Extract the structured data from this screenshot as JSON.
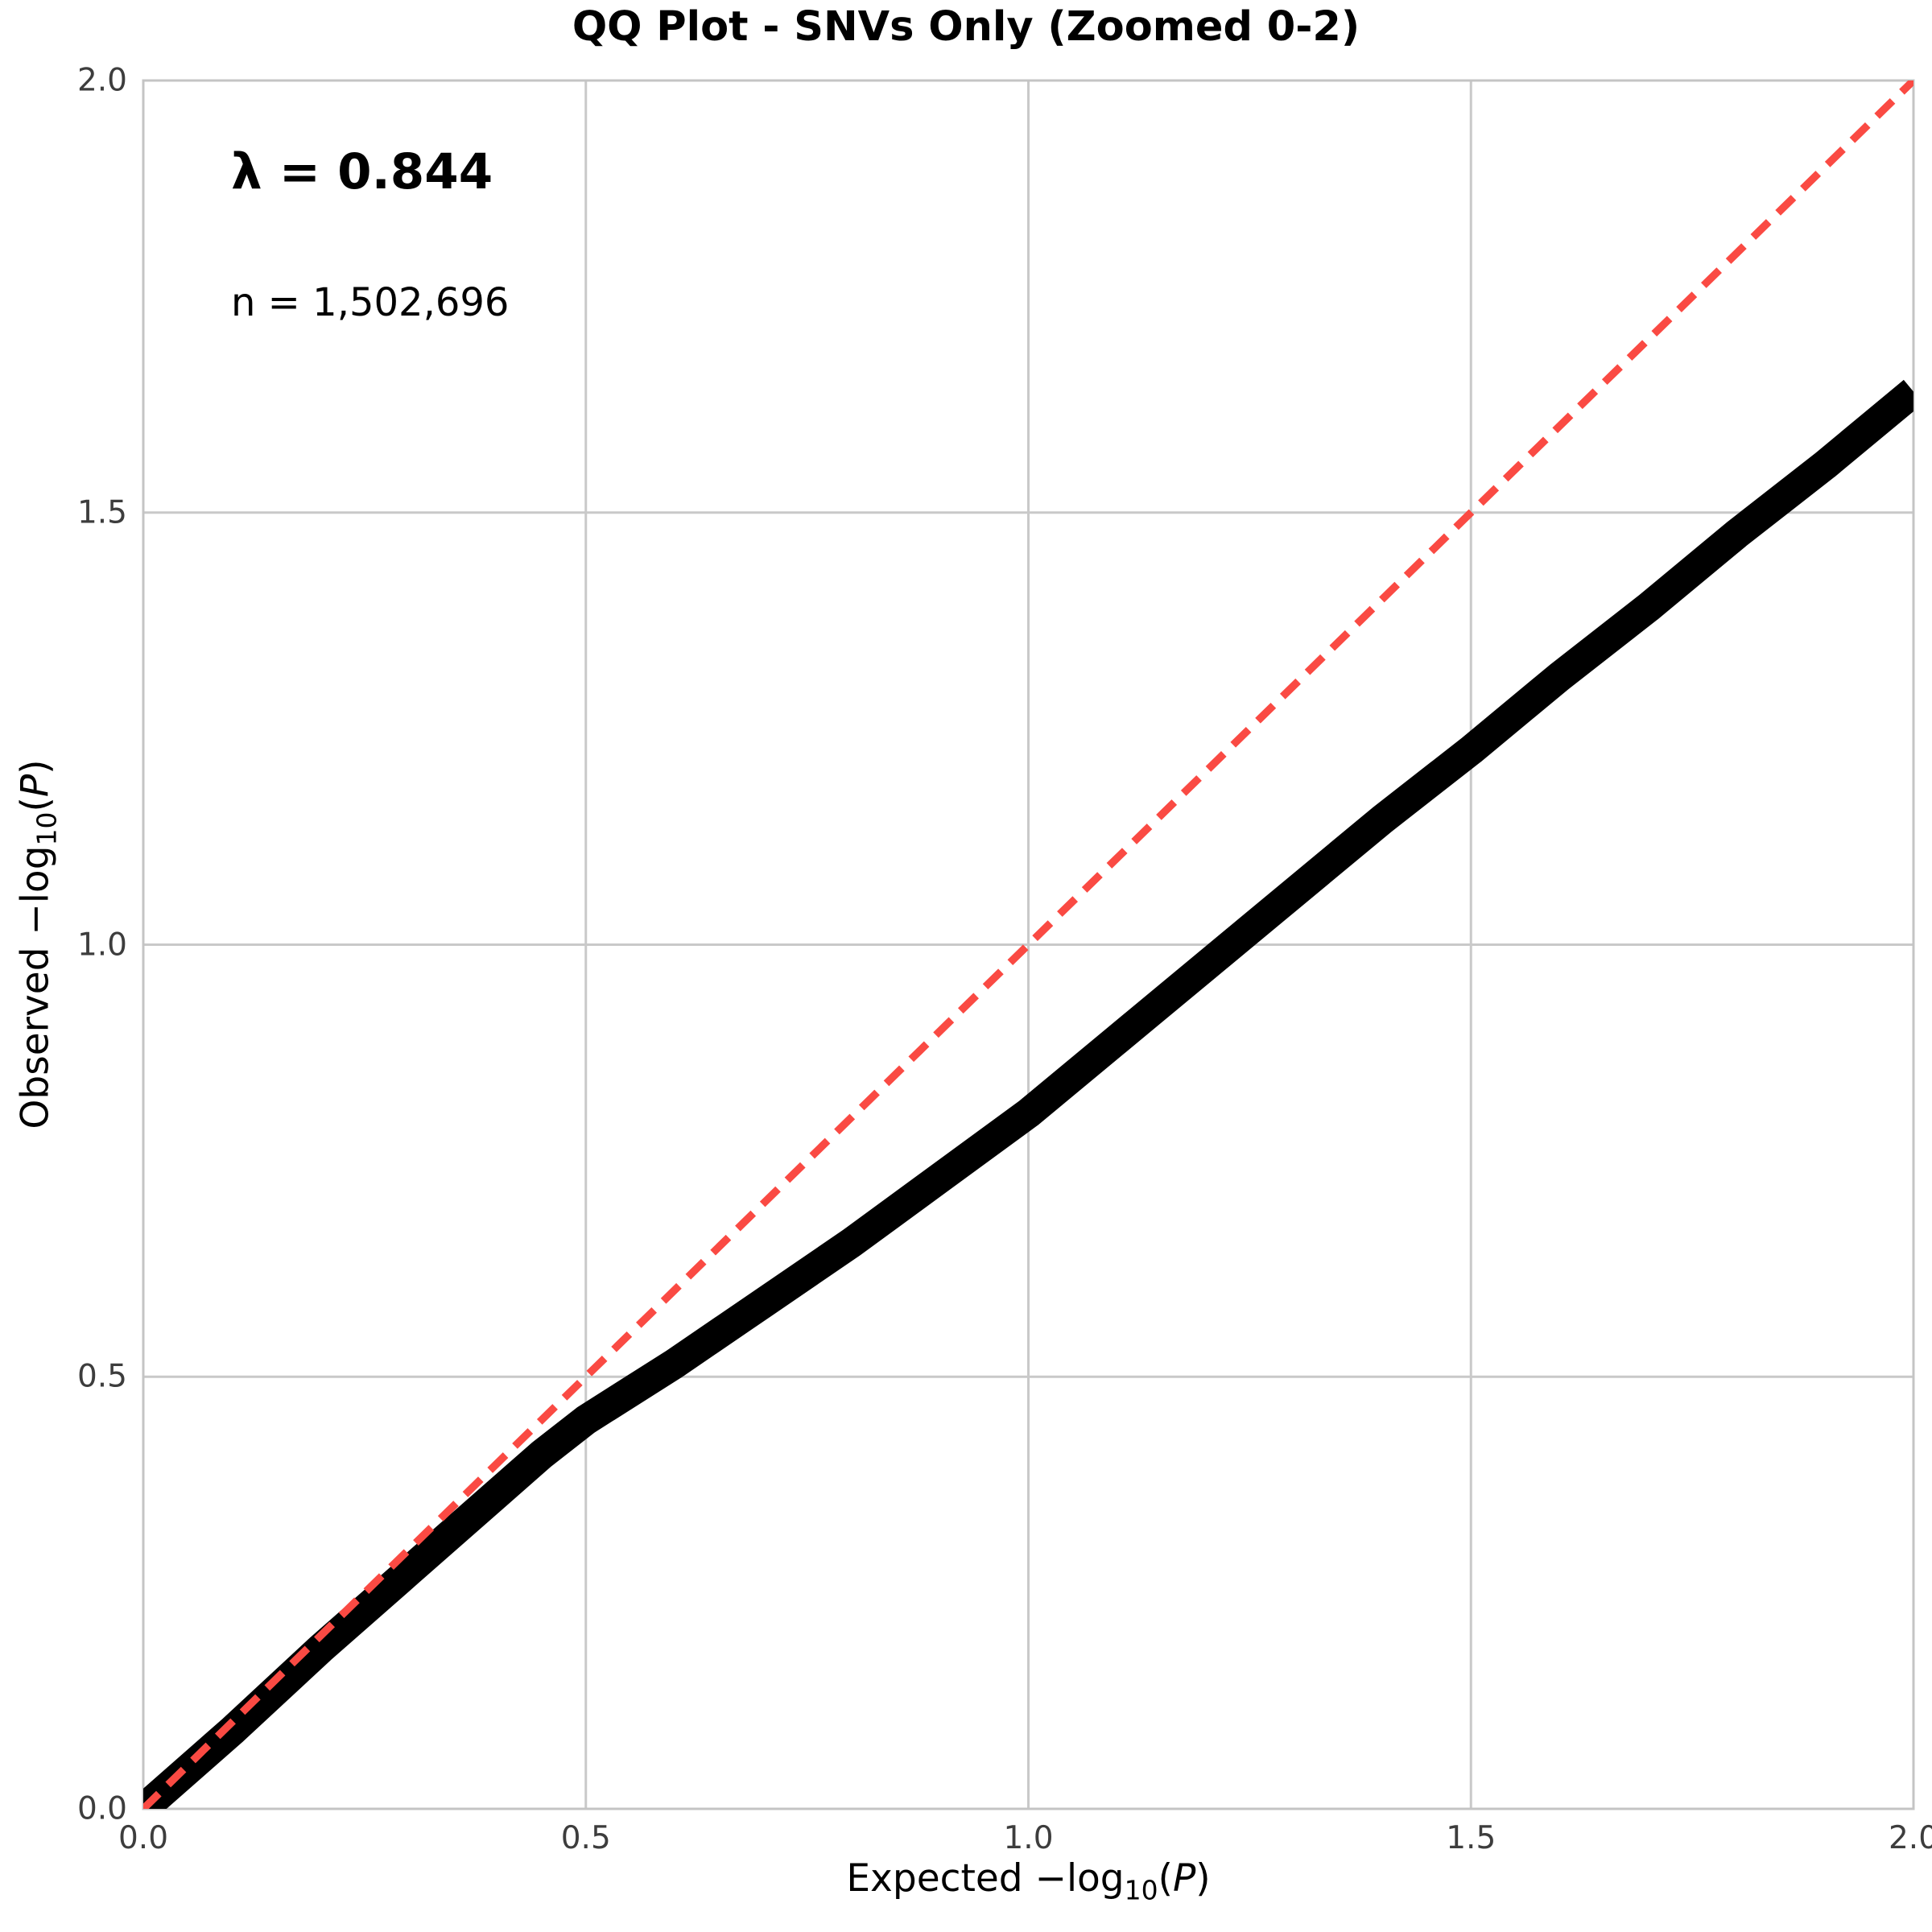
{
  "page": {
    "background": "#ffffff"
  },
  "chart_data": {
    "type": "line",
    "title": "QQ Plot - SNVs Only (Zoomed 0-2)",
    "xlabel": "Expected −log10(P)",
    "ylabel": "Observed −log10(P)",
    "xlim": [
      0,
      2
    ],
    "ylim": [
      0,
      2
    ],
    "grid": true,
    "legend": "none",
    "x_ticks": [
      "0.0",
      "0.5",
      "1.0",
      "1.5",
      "2.0"
    ],
    "y_ticks": [
      "0.0",
      "0.5",
      "1.0",
      "1.5",
      "2.0"
    ],
    "annotations": [
      {
        "name": "lambda",
        "text": "λ = 0.844"
      },
      {
        "name": "n-count",
        "text": "n = 1,502,696"
      }
    ],
    "series": [
      {
        "name": "observed-quantiles",
        "color": "#000000",
        "style": "solid",
        "x": [
          0.0,
          0.1,
          0.2,
          0.3,
          0.4,
          0.45,
          0.5,
          0.6,
          0.7,
          0.8,
          0.9,
          1.0,
          1.1,
          1.2,
          1.3,
          1.4,
          1.5,
          1.6,
          1.7,
          1.8,
          1.9,
          2.0
        ],
        "y": [
          0.0,
          0.09,
          0.185,
          0.275,
          0.365,
          0.41,
          0.45,
          0.515,
          0.585,
          0.655,
          0.73,
          0.805,
          0.89,
          0.975,
          1.06,
          1.145,
          1.225,
          1.31,
          1.39,
          1.475,
          1.555,
          1.64
        ]
      },
      {
        "name": "identity-line",
        "color": "#fa4a43",
        "style": "dashed",
        "x": [
          0,
          2
        ],
        "y": [
          0,
          2
        ]
      }
    ],
    "colors": {
      "grid": "#c9c9c9",
      "spine": "#c4c4c4",
      "tick_label": "#3d3d3d",
      "title": "#000000"
    }
  },
  "axes": {
    "xlabel_parts": {
      "pre": "Expected −log",
      "sub": "10",
      "open": "(",
      "var": "P",
      "close": ")"
    },
    "ylabel_parts": {
      "pre": "Observed −log",
      "sub": "10",
      "open": "(",
      "var": "P",
      "close": ")"
    }
  }
}
